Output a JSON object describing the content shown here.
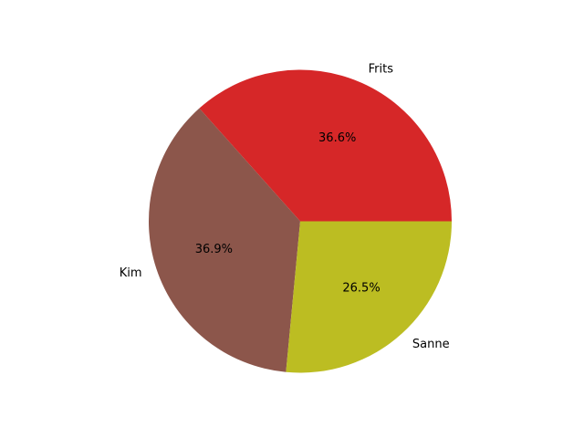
{
  "chart_data": {
    "type": "pie",
    "slices": [
      {
        "label": "Frits",
        "value": 36.6,
        "pct_label": "36.6%",
        "color": "#d62728"
      },
      {
        "label": "Kim",
        "value": 36.9,
        "pct_label": "36.9%",
        "color": "#8c564b"
      },
      {
        "label": "Sanne",
        "value": 26.5,
        "pct_label": "26.5%",
        "color": "#bcbd22"
      }
    ],
    "start_angle_deg": 0,
    "direction": "counterclockwise",
    "legend": "none"
  }
}
